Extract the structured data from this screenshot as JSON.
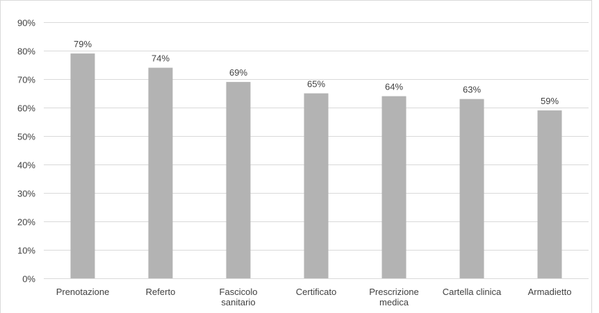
{
  "chart_data": {
    "type": "bar",
    "title": "",
    "xlabel": "",
    "ylabel": "",
    "categories": [
      "Prenotazione",
      "Referto",
      "Fascicolo sanitario",
      "Certificato",
      "Prescrizione medica",
      "Cartella clinica",
      "Armadietto"
    ],
    "values": [
      79,
      74,
      69,
      65,
      64,
      63,
      59
    ],
    "data_labels": [
      "79%",
      "74%",
      "69%",
      "65%",
      "64%",
      "63%",
      "59%"
    ],
    "value_unit": "%",
    "ylim": [
      0,
      90
    ],
    "y_ticks": [
      0,
      10,
      20,
      30,
      40,
      50,
      60,
      70,
      80,
      90
    ],
    "y_tick_labels": [
      "0%",
      "10%",
      "20%",
      "30%",
      "40%",
      "50%",
      "60%",
      "70%",
      "80%",
      "90%"
    ],
    "grid": true,
    "legend": "none",
    "bar_color": "#b3b3b3",
    "grid_color": "#d9d9d9",
    "text_color": "#404040"
  }
}
